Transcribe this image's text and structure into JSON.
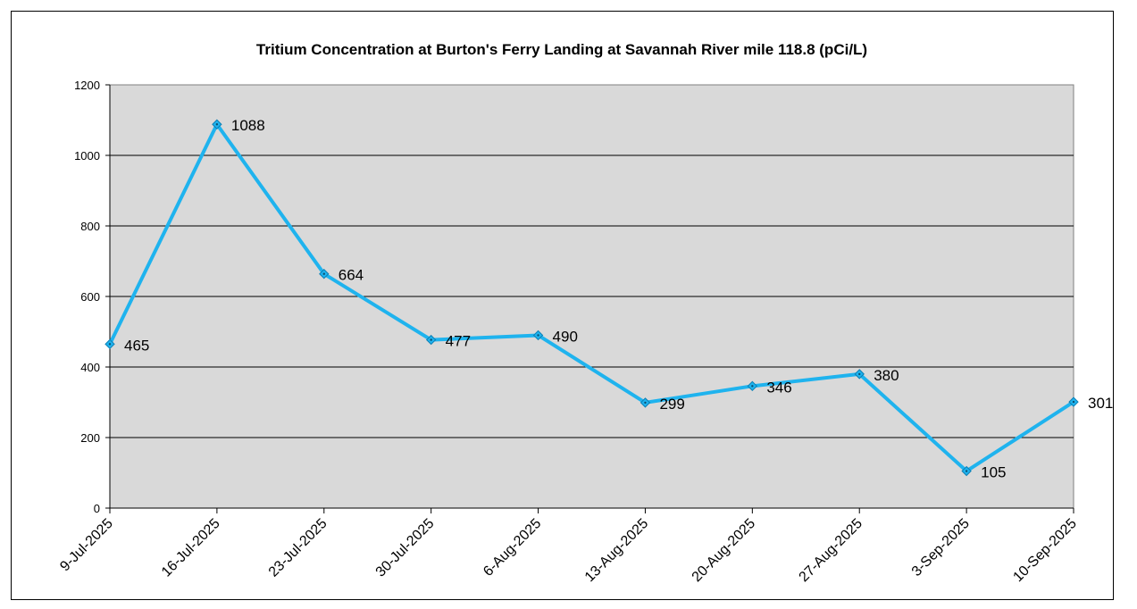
{
  "chart_data": {
    "type": "line",
    "title": "Tritium Concentration at Burton's Ferry Landing at Savannah River mile 118.8 (pCi/L)",
    "xlabel": "",
    "ylabel": "",
    "categories": [
      "9-Jul-2025",
      "16-Jul-2025",
      "23-Jul-2025",
      "30-Jul-2025",
      "6-Aug-2025",
      "13-Aug-2025",
      "20-Aug-2025",
      "27-Aug-2025",
      "3-Sep-2025",
      "10-Sep-2025"
    ],
    "values": [
      465,
      1088,
      664,
      477,
      490,
      299,
      346,
      380,
      105,
      301
    ],
    "ylim": [
      0,
      1200
    ],
    "yticks": [
      0,
      200,
      400,
      600,
      800,
      1000,
      1200
    ],
    "grid": true,
    "legend": "none",
    "colors": {
      "line": "#1fb3ee",
      "plot_background": "#d9d9d9",
      "gridline": "#000000"
    }
  }
}
